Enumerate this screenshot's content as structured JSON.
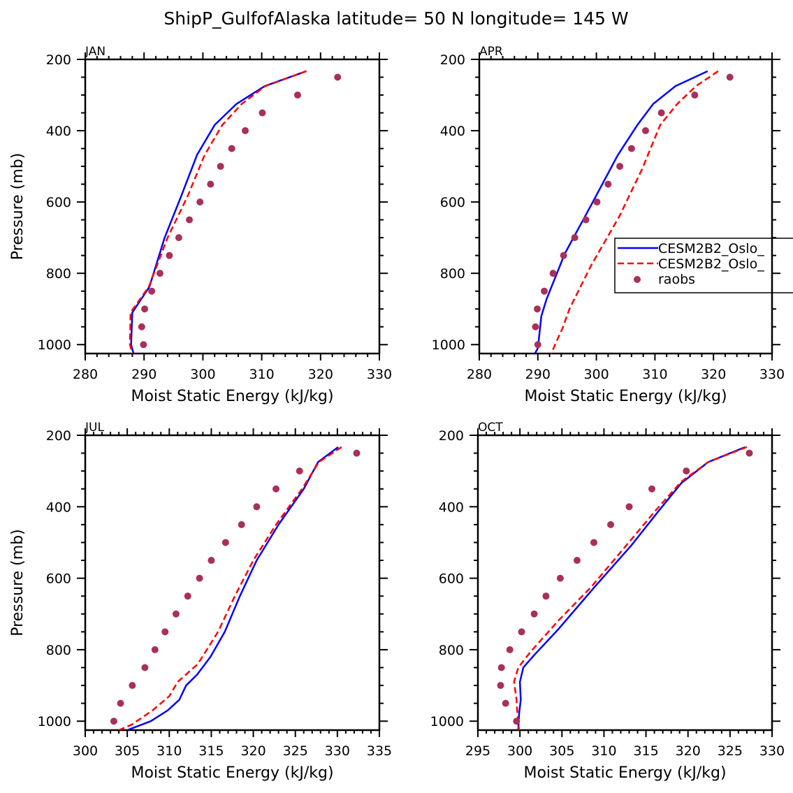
{
  "figure": {
    "title": "ShipP_GulfofAlaska  latitude= 50 N longitude= 145 W"
  },
  "colors": {
    "model1": "#0000ff",
    "model2": "#ff0000",
    "raobs": "#a8305a",
    "axis": "#000000"
  },
  "legend": {
    "panel": "APR",
    "entries": [
      {
        "label": "CESM2B2_Oslo_",
        "style": "solid",
        "color": "#0000ff"
      },
      {
        "label": "CESM2B2_Oslo_",
        "style": "dashed",
        "color": "#ff0000"
      },
      {
        "label": "raobs",
        "style": "marker",
        "color": "#a8305a"
      }
    ]
  },
  "chart_data": [
    {
      "type": "line",
      "panel": "JAN",
      "xlabel": "Moist Static Energy (kJ/kg)",
      "ylabel": "Pressure (mb)",
      "xlim": [
        280,
        330
      ],
      "ylim": [
        1025,
        200
      ],
      "y_reversed": true,
      "xticks": [
        280,
        290,
        300,
        310,
        320,
        330
      ],
      "yticks": [
        200,
        400,
        600,
        800,
        1000
      ],
      "series": [
        {
          "name": "CESM2B2_Oslo_",
          "style": "solid",
          "color": "#0000ff",
          "x": [
            317.6,
            310.5,
            305.7,
            302.0,
            299.0,
            296.3,
            293.5,
            290.9,
            288.0,
            287.8,
            288.2
          ],
          "y": [
            233,
            275,
            325,
            384,
            468,
            584,
            700,
            838,
            910,
            1000,
            1025
          ]
        },
        {
          "name": "CESM2B2_Oslo_",
          "style": "dashed",
          "color": "#ff0000",
          "x": [
            317.6,
            310.6,
            306.6,
            303.3,
            300.3,
            297.4,
            294.0,
            290.8,
            287.7,
            287.6,
            288.0
          ],
          "y": [
            233,
            275,
            325,
            384,
            468,
            584,
            700,
            838,
            910,
            1000,
            1025
          ]
        },
        {
          "name": "raobs",
          "style": "marker",
          "color": "#a8305a",
          "x": [
            322.9,
            316.1,
            310.1,
            307.2,
            304.9,
            303.0,
            301.3,
            299.5,
            297.7,
            295.9,
            294.3,
            292.7,
            291.3,
            290.1,
            289.6,
            289.9
          ],
          "y": [
            250,
            300,
            350,
            400,
            450,
            500,
            550,
            600,
            650,
            700,
            750,
            800,
            850,
            900,
            950,
            1000
          ]
        }
      ]
    },
    {
      "type": "line",
      "panel": "APR",
      "xlabel": "Moist Static Energy (kJ/kg)",
      "ylabel": "",
      "xlim": [
        280,
        330
      ],
      "ylim": [
        1025,
        200
      ],
      "y_reversed": true,
      "xticks": [
        280,
        290,
        300,
        310,
        320,
        330
      ],
      "yticks": [
        200,
        400,
        600,
        800,
        1000
      ],
      "legend": "right-middle",
      "series": [
        {
          "name": "CESM2B2_Oslo_",
          "style": "solid",
          "color": "#0000ff",
          "x": [
            319.0,
            313.5,
            309.7,
            307.0,
            303.6,
            299.1,
            294.6,
            291.5,
            290.6,
            290.0,
            289.5
          ],
          "y": [
            233,
            275,
            325,
            384,
            470,
            609,
            745,
            872,
            920,
            1010,
            1025
          ]
        },
        {
          "name": "CESM2B2_Oslo_",
          "style": "dashed",
          "color": "#ff0000",
          "x": [
            320.8,
            317.0,
            313.8,
            310.9,
            307.8,
            303.9,
            299.1,
            295.4,
            294.2,
            293.1,
            292.3
          ],
          "y": [
            233,
            275,
            325,
            384,
            508,
            641,
            778,
            900,
            955,
            994,
            1025
          ]
        },
        {
          "name": "raobs",
          "style": "marker",
          "color": "#a8305a",
          "x": [
            322.8,
            316.8,
            311.1,
            308.4,
            306.0,
            304.0,
            302.0,
            300.1,
            298.2,
            296.3,
            294.4,
            292.6,
            291.1,
            289.9,
            289.6,
            290.0
          ],
          "y": [
            250,
            300,
            350,
            400,
            450,
            500,
            550,
            600,
            650,
            700,
            750,
            800,
            850,
            900,
            950,
            1000
          ]
        }
      ]
    },
    {
      "type": "line",
      "panel": "JUL",
      "xlabel": "Moist Static Energy (kJ/kg)",
      "ylabel": "Pressure (mb)",
      "xlim": [
        300,
        335
      ],
      "ylim": [
        1025,
        200
      ],
      "y_reversed": true,
      "xticks": [
        300,
        305,
        310,
        315,
        320,
        325,
        330,
        335
      ],
      "yticks": [
        200,
        400,
        600,
        800,
        1000
      ],
      "series": [
        {
          "name": "CESM2B2_Oslo_",
          "style": "solid",
          "color": "#0000ff",
          "x": [
            330.1,
            327.7,
            326.0,
            323.0,
            320.4,
            318.4,
            316.6,
            314.9,
            313.3,
            312.0,
            311.2,
            309.8,
            307.8,
            305.0
          ],
          "y": [
            233,
            275,
            350,
            450,
            550,
            650,
            750,
            820,
            870,
            900,
            940,
            970,
            1000,
            1025
          ]
        },
        {
          "name": "CESM2B2_Oslo_",
          "style": "dashed",
          "color": "#ff0000",
          "x": [
            330.5,
            327.8,
            325.8,
            322.7,
            320.0,
            317.8,
            315.8,
            313.4,
            311.0,
            310.0,
            308.0,
            305.5,
            304.0
          ],
          "y": [
            233,
            275,
            350,
            450,
            550,
            650,
            750,
            840,
            890,
            930,
            970,
            1010,
            1025
          ]
        },
        {
          "name": "raobs",
          "style": "marker",
          "color": "#a8305a",
          "x": [
            332.3,
            325.5,
            322.7,
            320.4,
            318.6,
            316.7,
            315.0,
            313.6,
            312.2,
            310.8,
            309.5,
            308.3,
            307.1,
            305.6,
            304.2,
            303.4
          ],
          "y": [
            250,
            300,
            350,
            400,
            450,
            500,
            550,
            600,
            650,
            700,
            750,
            800,
            850,
            900,
            950,
            1000
          ]
        }
      ]
    },
    {
      "type": "line",
      "panel": "OCT",
      "xlabel": "Moist Static Energy (kJ/kg)",
      "ylabel": "",
      "xlim": [
        295,
        330
      ],
      "ylim": [
        1025,
        200
      ],
      "y_reversed": true,
      "xticks": [
        295,
        300,
        305,
        310,
        315,
        320,
        325,
        330
      ],
      "yticks": [
        200,
        400,
        600,
        800,
        1000
      ],
      "series": [
        {
          "name": "CESM2B2_Oslo_",
          "style": "solid",
          "color": "#0000ff",
          "x": [
            326.8,
            322.4,
            319.2,
            316.6,
            313.3,
            308.9,
            304.6,
            301.7,
            300.4,
            300.0,
            300.1,
            299.9,
            299.8
          ],
          "y": [
            233,
            275,
            334,
            409,
            507,
            624,
            742,
            815,
            850,
            890,
            940,
            980,
            1025
          ]
        },
        {
          "name": "CESM2B2_Oslo_",
          "style": "dashed",
          "color": "#ff0000",
          "x": [
            327.0,
            322.4,
            319.2,
            316.2,
            312.7,
            308.5,
            304.6,
            301.3,
            299.8,
            299.3,
            299.6,
            299.7,
            299.9
          ],
          "y": [
            233,
            275,
            330,
            409,
            507,
            624,
            718,
            805,
            850,
            890,
            940,
            980,
            1025
          ]
        },
        {
          "name": "raobs",
          "style": "marker",
          "color": "#a8305a",
          "x": [
            327.3,
            319.8,
            315.7,
            313.0,
            310.8,
            308.8,
            306.8,
            304.8,
            303.1,
            301.7,
            300.2,
            298.8,
            297.8,
            297.7,
            298.3,
            299.6
          ],
          "y": [
            250,
            300,
            350,
            400,
            450,
            500,
            550,
            600,
            650,
            700,
            750,
            800,
            850,
            900,
            950,
            1000
          ]
        }
      ]
    }
  ]
}
